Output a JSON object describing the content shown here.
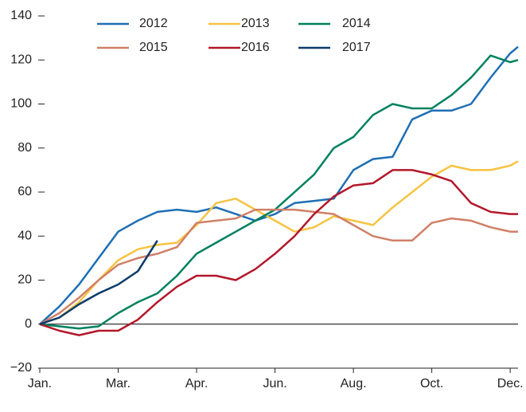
{
  "chart_data": {
    "type": "line",
    "x": [
      0,
      0.25,
      0.5,
      0.75,
      1,
      1.25,
      1.5,
      1.75,
      2,
      2.25,
      2.5,
      2.75,
      3,
      3.25,
      3.5,
      3.75,
      4,
      4.25,
      4.5,
      4.75,
      5,
      5.25,
      5.5,
      5.75,
      6,
      6.1
    ],
    "series": [
      {
        "name": "2012",
        "color": "#1f6fb4",
        "values": [
          0,
          8,
          18,
          30,
          42,
          47,
          51,
          52,
          51,
          53,
          50,
          47,
          50,
          55,
          56,
          57,
          70,
          75,
          76,
          93,
          97,
          97,
          100,
          112,
          123,
          126
        ]
      },
      {
        "name": "2013",
        "color": "#f6c342",
        "values": [
          0,
          3,
          10,
          20,
          29,
          34,
          36,
          37,
          45,
          55,
          57,
          52,
          47,
          42,
          44,
          49,
          47,
          45,
          53,
          60,
          67,
          72,
          70,
          70,
          72,
          74
        ]
      },
      {
        "name": "2014",
        "color": "#00815f",
        "values": [
          0,
          -1,
          -2,
          -1,
          5,
          10,
          14,
          22,
          32,
          37,
          42,
          47,
          52,
          60,
          68,
          80,
          85,
          95,
          100,
          98,
          98,
          104,
          112,
          122,
          119,
          120
        ]
      },
      {
        "name": "2015",
        "color": "#d08068",
        "values": [
          0,
          5,
          12,
          20,
          27,
          30,
          32,
          35,
          46,
          47,
          48,
          52,
          52,
          52,
          51,
          50,
          45,
          40,
          38,
          38,
          46,
          48,
          47,
          44,
          42,
          42
        ]
      },
      {
        "name": "2016",
        "color": "#b2182b",
        "values": [
          0,
          -3,
          -5,
          -3,
          -3,
          2,
          10,
          17,
          22,
          22,
          20,
          25,
          32,
          40,
          50,
          58,
          63,
          64,
          70,
          70,
          68,
          65,
          55,
          51,
          50,
          50
        ]
      },
      {
        "name": "2017",
        "color": "#0b3a6b",
        "values": [
          0,
          3,
          9,
          14,
          18,
          24,
          38,
          null,
          null,
          null,
          null,
          null,
          null,
          null,
          null,
          null,
          null,
          null,
          null,
          null,
          null,
          null,
          null,
          null,
          null,
          null
        ]
      }
    ],
    "xlim": [
      0,
      6.1
    ],
    "xticks": [
      {
        "value": 0,
        "label": "Jan."
      },
      {
        "value": 1,
        "label": "Mar."
      },
      {
        "value": 2,
        "label": "Apr."
      },
      {
        "value": 3,
        "label": "Jun."
      },
      {
        "value": 4,
        "label": "Aug."
      },
      {
        "value": 5,
        "label": "Oct."
      },
      {
        "value": 6,
        "label": "Dec."
      }
    ],
    "ylim": [
      -20,
      140
    ],
    "yticks": [
      {
        "value": -20,
        "label": "−20"
      },
      0,
      20,
      40,
      60,
      80,
      100,
      120,
      140
    ],
    "grid": false
  }
}
